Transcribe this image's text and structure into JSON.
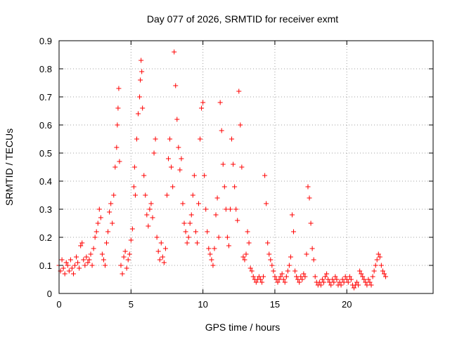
{
  "chart_data": {
    "type": "scatter",
    "title": "Day 077 of 2026, SRMTID for receiver exmt",
    "xlabel": "GPS time / hours",
    "ylabel": "SRMTID / TECUs",
    "xlim": [
      0,
      26
    ],
    "ylim": [
      0,
      0.9
    ],
    "x_ticks": [
      0,
      5,
      10,
      15,
      20
    ],
    "x_tick_labels": [
      "0",
      "5",
      "10",
      "15",
      "20"
    ],
    "y_ticks": [
      0,
      0.1,
      0.2,
      0.3,
      0.4,
      0.5,
      0.6,
      0.7,
      0.8,
      0.9
    ],
    "y_tick_labels": [
      "0",
      "0.1",
      "0.2",
      "0.3",
      "0.4",
      "0.5",
      "0.6",
      "0.7",
      "0.8",
      "0.9"
    ],
    "grid": true,
    "marker": "+",
    "color": "#ff0000",
    "series": [
      {
        "name": "SRMTID",
        "points": [
          [
            0.0,
            0.1
          ],
          [
            0.1,
            0.08
          ],
          [
            0.2,
            0.12
          ],
          [
            0.3,
            0.09
          ],
          [
            0.4,
            0.07
          ],
          [
            0.5,
            0.11
          ],
          [
            0.6,
            0.1
          ],
          [
            0.7,
            0.08
          ],
          [
            0.8,
            0.12
          ],
          [
            0.9,
            0.09
          ],
          [
            1.0,
            0.07
          ],
          [
            1.1,
            0.1
          ],
          [
            1.2,
            0.13
          ],
          [
            1.3,
            0.11
          ],
          [
            1.4,
            0.09
          ],
          [
            1.5,
            0.17
          ],
          [
            1.6,
            0.18
          ],
          [
            1.7,
            0.12
          ],
          [
            1.8,
            0.1
          ],
          [
            1.9,
            0.13
          ],
          [
            2.0,
            0.11
          ],
          [
            2.1,
            0.12
          ],
          [
            2.2,
            0.14
          ],
          [
            2.3,
            0.1
          ],
          [
            2.4,
            0.16
          ],
          [
            2.5,
            0.2
          ],
          [
            2.6,
            0.22
          ],
          [
            2.7,
            0.25
          ],
          [
            2.8,
            0.3
          ],
          [
            2.9,
            0.27
          ],
          [
            3.0,
            0.14
          ],
          [
            3.1,
            0.12
          ],
          [
            3.2,
            0.1
          ],
          [
            3.3,
            0.18
          ],
          [
            3.4,
            0.22
          ],
          [
            3.5,
            0.29
          ],
          [
            3.6,
            0.32
          ],
          [
            3.7,
            0.25
          ],
          [
            3.8,
            0.35
          ],
          [
            3.9,
            0.45
          ],
          [
            4.0,
            0.52
          ],
          [
            4.05,
            0.6
          ],
          [
            4.1,
            0.66
          ],
          [
            4.15,
            0.73
          ],
          [
            4.2,
            0.47
          ],
          [
            4.3,
            0.1
          ],
          [
            4.4,
            0.07
          ],
          [
            4.5,
            0.13
          ],
          [
            4.6,
            0.15
          ],
          [
            4.7,
            0.09
          ],
          [
            4.8,
            0.12
          ],
          [
            4.9,
            0.14
          ],
          [
            5.0,
            0.19
          ],
          [
            5.1,
            0.23
          ],
          [
            5.2,
            0.38
          ],
          [
            5.25,
            0.45
          ],
          [
            5.3,
            0.35
          ],
          [
            5.4,
            0.55
          ],
          [
            5.5,
            0.64
          ],
          [
            5.6,
            0.7
          ],
          [
            5.65,
            0.76
          ],
          [
            5.7,
            0.83
          ],
          [
            5.75,
            0.79
          ],
          [
            5.8,
            0.66
          ],
          [
            5.9,
            0.42
          ],
          [
            6.0,
            0.35
          ],
          [
            6.1,
            0.28
          ],
          [
            6.2,
            0.24
          ],
          [
            6.3,
            0.3
          ],
          [
            6.4,
            0.32
          ],
          [
            6.5,
            0.27
          ],
          [
            6.6,
            0.5
          ],
          [
            6.7,
            0.55
          ],
          [
            6.8,
            0.2
          ],
          [
            6.9,
            0.15
          ],
          [
            7.0,
            0.12
          ],
          [
            7.1,
            0.18
          ],
          [
            7.2,
            0.13
          ],
          [
            7.3,
            0.11
          ],
          [
            7.4,
            0.16
          ],
          [
            7.5,
            0.35
          ],
          [
            7.6,
            0.48
          ],
          [
            7.7,
            0.55
          ],
          [
            7.8,
            0.45
          ],
          [
            7.9,
            0.38
          ],
          [
            8.0,
            0.86
          ],
          [
            8.1,
            0.74
          ],
          [
            8.2,
            0.62
          ],
          [
            8.3,
            0.52
          ],
          [
            8.4,
            0.44
          ],
          [
            8.5,
            0.48
          ],
          [
            8.6,
            0.32
          ],
          [
            8.7,
            0.25
          ],
          [
            8.8,
            0.22
          ],
          [
            8.9,
            0.18
          ],
          [
            9.0,
            0.2
          ],
          [
            9.1,
            0.25
          ],
          [
            9.2,
            0.28
          ],
          [
            9.3,
            0.35
          ],
          [
            9.4,
            0.42
          ],
          [
            9.5,
            0.22
          ],
          [
            9.6,
            0.18
          ],
          [
            9.7,
            0.32
          ],
          [
            9.8,
            0.55
          ],
          [
            9.9,
            0.66
          ],
          [
            10.0,
            0.68
          ],
          [
            10.1,
            0.42
          ],
          [
            10.2,
            0.3
          ],
          [
            10.3,
            0.22
          ],
          [
            10.4,
            0.16
          ],
          [
            10.5,
            0.14
          ],
          [
            10.6,
            0.12
          ],
          [
            10.7,
            0.1
          ],
          [
            10.8,
            0.16
          ],
          [
            10.9,
            0.28
          ],
          [
            11.0,
            0.34
          ],
          [
            11.1,
            0.2
          ],
          [
            11.2,
            0.68
          ],
          [
            11.3,
            0.58
          ],
          [
            11.4,
            0.46
          ],
          [
            11.5,
            0.38
          ],
          [
            11.6,
            0.3
          ],
          [
            11.7,
            0.2
          ],
          [
            11.8,
            0.17
          ],
          [
            11.9,
            0.3
          ],
          [
            12.0,
            0.55
          ],
          [
            12.1,
            0.46
          ],
          [
            12.2,
            0.38
          ],
          [
            12.3,
            0.3
          ],
          [
            12.4,
            0.26
          ],
          [
            12.5,
            0.72
          ],
          [
            12.6,
            0.6
          ],
          [
            12.7,
            0.45
          ],
          [
            12.8,
            0.13
          ],
          [
            12.9,
            0.12
          ],
          [
            13.0,
            0.14
          ],
          [
            13.1,
            0.22
          ],
          [
            13.2,
            0.18
          ],
          [
            13.3,
            0.09
          ],
          [
            13.4,
            0.08
          ],
          [
            13.5,
            0.06
          ],
          [
            13.6,
            0.05
          ],
          [
            13.7,
            0.04
          ],
          [
            13.8,
            0.05
          ],
          [
            13.9,
            0.06
          ],
          [
            14.0,
            0.05
          ],
          [
            14.1,
            0.04
          ],
          [
            14.2,
            0.06
          ],
          [
            14.3,
            0.42
          ],
          [
            14.4,
            0.32
          ],
          [
            14.5,
            0.18
          ],
          [
            14.6,
            0.14
          ],
          [
            14.7,
            0.12
          ],
          [
            14.8,
            0.1
          ],
          [
            14.9,
            0.08
          ],
          [
            15.0,
            0.06
          ],
          [
            15.1,
            0.05
          ],
          [
            15.2,
            0.04
          ],
          [
            15.3,
            0.05
          ],
          [
            15.4,
            0.06
          ],
          [
            15.5,
            0.07
          ],
          [
            15.6,
            0.05
          ],
          [
            15.7,
            0.04
          ],
          [
            15.8,
            0.06
          ],
          [
            15.9,
            0.08
          ],
          [
            16.0,
            0.1
          ],
          [
            16.1,
            0.13
          ],
          [
            16.2,
            0.28
          ],
          [
            16.3,
            0.22
          ],
          [
            16.4,
            0.08
          ],
          [
            16.5,
            0.06
          ],
          [
            16.6,
            0.05
          ],
          [
            16.7,
            0.04
          ],
          [
            16.8,
            0.06
          ],
          [
            16.9,
            0.05
          ],
          [
            17.0,
            0.07
          ],
          [
            17.1,
            0.06
          ],
          [
            17.2,
            0.14
          ],
          [
            17.3,
            0.38
          ],
          [
            17.4,
            0.34
          ],
          [
            17.5,
            0.25
          ],
          [
            17.6,
            0.16
          ],
          [
            17.7,
            0.12
          ],
          [
            17.8,
            0.06
          ],
          [
            17.9,
            0.04
          ],
          [
            18.0,
            0.03
          ],
          [
            18.1,
            0.04
          ],
          [
            18.2,
            0.03
          ],
          [
            18.3,
            0.05
          ],
          [
            18.4,
            0.04
          ],
          [
            18.5,
            0.06
          ],
          [
            18.6,
            0.07
          ],
          [
            18.7,
            0.05
          ],
          [
            18.8,
            0.04
          ],
          [
            18.9,
            0.03
          ],
          [
            19.0,
            0.05
          ],
          [
            19.1,
            0.04
          ],
          [
            19.2,
            0.06
          ],
          [
            19.3,
            0.05
          ],
          [
            19.4,
            0.03
          ],
          [
            19.5,
            0.04
          ],
          [
            19.6,
            0.03
          ],
          [
            19.7,
            0.05
          ],
          [
            19.8,
            0.04
          ],
          [
            19.9,
            0.06
          ],
          [
            20.0,
            0.05
          ],
          [
            20.1,
            0.04
          ],
          [
            20.2,
            0.06
          ],
          [
            20.3,
            0.05
          ],
          [
            20.4,
            0.03
          ],
          [
            20.5,
            0.02
          ],
          [
            20.6,
            0.03
          ],
          [
            20.7,
            0.04
          ],
          [
            20.8,
            0.03
          ],
          [
            20.9,
            0.08
          ],
          [
            21.0,
            0.07
          ],
          [
            21.1,
            0.06
          ],
          [
            21.2,
            0.05
          ],
          [
            21.3,
            0.04
          ],
          [
            21.4,
            0.03
          ],
          [
            21.5,
            0.05
          ],
          [
            21.6,
            0.04
          ],
          [
            21.7,
            0.03
          ],
          [
            21.8,
            0.06
          ],
          [
            21.9,
            0.08
          ],
          [
            22.0,
            0.1
          ],
          [
            22.1,
            0.12
          ],
          [
            22.2,
            0.14
          ],
          [
            22.3,
            0.13
          ],
          [
            22.4,
            0.1
          ],
          [
            22.5,
            0.08
          ],
          [
            22.6,
            0.07
          ],
          [
            22.7,
            0.06
          ]
        ]
      }
    ]
  }
}
